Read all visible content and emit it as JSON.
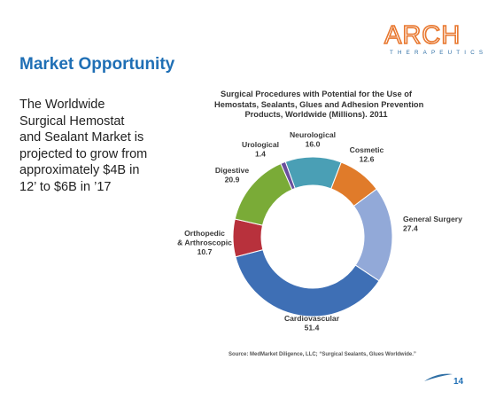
{
  "header": {
    "logo_text": "ARCH",
    "logo_subtext": "THERAPEUTICS",
    "title": "Market Opportunity"
  },
  "body": {
    "lines": [
      "The Worldwide",
      "Surgical Hemostat",
      "and Sealant Market is",
      "projected to grow from",
      "approximately $4B in",
      "12’ to $6B in ’17"
    ]
  },
  "chart_title_lines": [
    "Surgical Procedures with Potential for the Use of",
    "Hemostats, Sealants, Glues and Adhesion Prevention",
    "Products, Worldwide (Millions). 2011"
  ],
  "chart_data": {
    "type": "pie",
    "donut": true,
    "title": "Surgical Procedures with Potential for the Use of Hemostats, Sealants, Glues and Adhesion Prevention Products, Worldwide (Millions). 2011",
    "slices": [
      {
        "label": "Neurological",
        "value": 16.0,
        "value_text": "16.0",
        "color": "#4a9fb5"
      },
      {
        "label": "Cosmetic",
        "value": 12.6,
        "value_text": "12.6",
        "color": "#e07b2a"
      },
      {
        "label": "General Surgery",
        "value": 27.4,
        "value_text": "27.4",
        "color": "#92a9d8"
      },
      {
        "label": "Cardiovascular",
        "value": 51.4,
        "value_text": "51.4",
        "color": "#3e6fb5"
      },
      {
        "label": "Orthopedic & Arthroscopic",
        "value": 10.7,
        "value_text": "10.7",
        "color": "#b8313c"
      },
      {
        "label": "Digestive",
        "value": 20.9,
        "value_text": "20.9",
        "color": "#7aab37"
      },
      {
        "label": "Urological",
        "value": 1.4,
        "value_text": "1.4",
        "color": "#6a4f9c"
      }
    ]
  },
  "footer": {
    "source": "Source: MedMarket Diligence, LLC; “Surgical Sealants, Glues Worldwide.”",
    "page_number": "14"
  },
  "colors": {
    "title_blue": "#1f6fb5",
    "logo_orange": "#e8772e",
    "logo_blue": "#2f6fa5"
  }
}
